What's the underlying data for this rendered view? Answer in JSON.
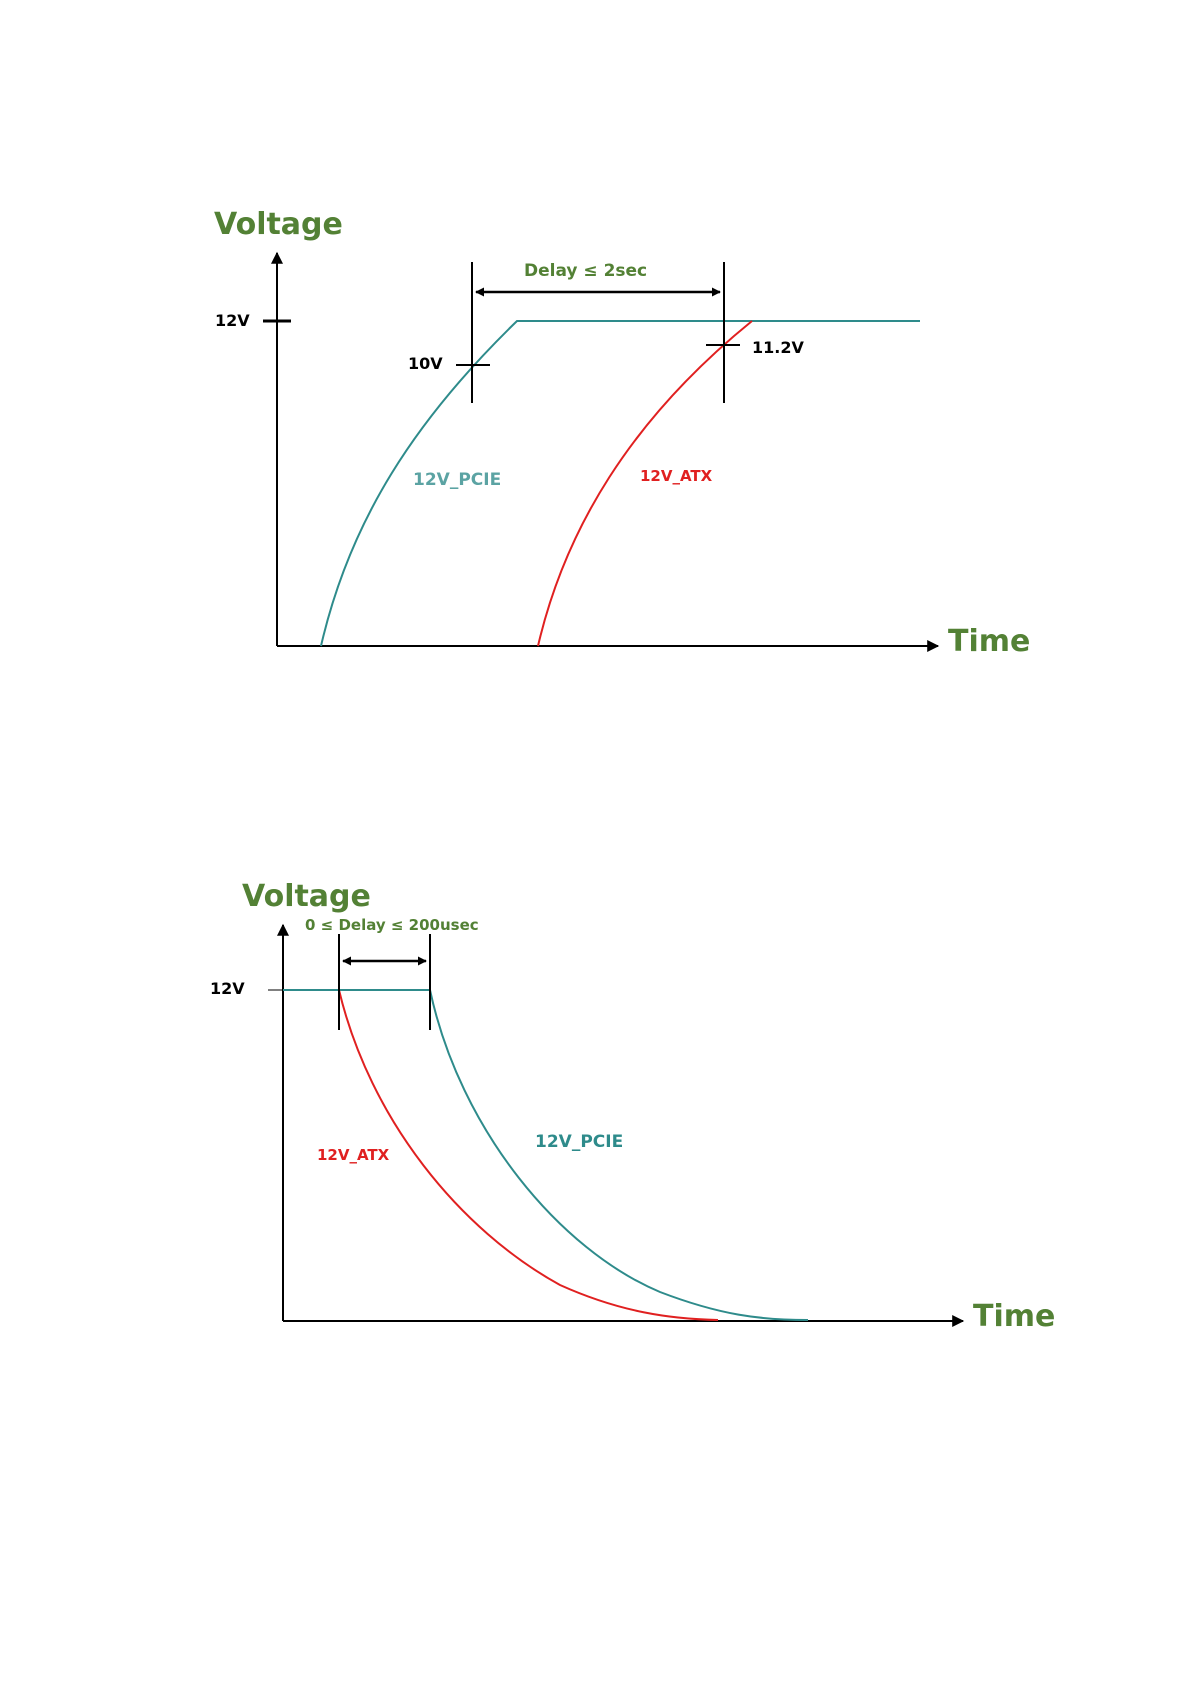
{
  "colors": {
    "heading": "#538135",
    "pcie": "#2E8B8B",
    "atx": "#E02020",
    "axis": "#000000",
    "label": "#000000"
  },
  "diagram_power_on": {
    "y_axis_label": "Voltage",
    "x_axis_label": "Time",
    "level_12v": "12V",
    "marker_10v": "10V",
    "marker_11_2v": "11.2V",
    "delay_label": "Delay  ≤ 2sec",
    "series_pcie": "12V_PCIE",
    "series_atx": "12V_ATX"
  },
  "diagram_power_off": {
    "y_axis_label": "Voltage",
    "x_axis_label": "Time",
    "level_12v": "12V",
    "delay_label": "0  ≤  Delay  ≤ 200usec",
    "series_atx": "12V_ATX",
    "series_pcie": "12V_PCIE"
  }
}
